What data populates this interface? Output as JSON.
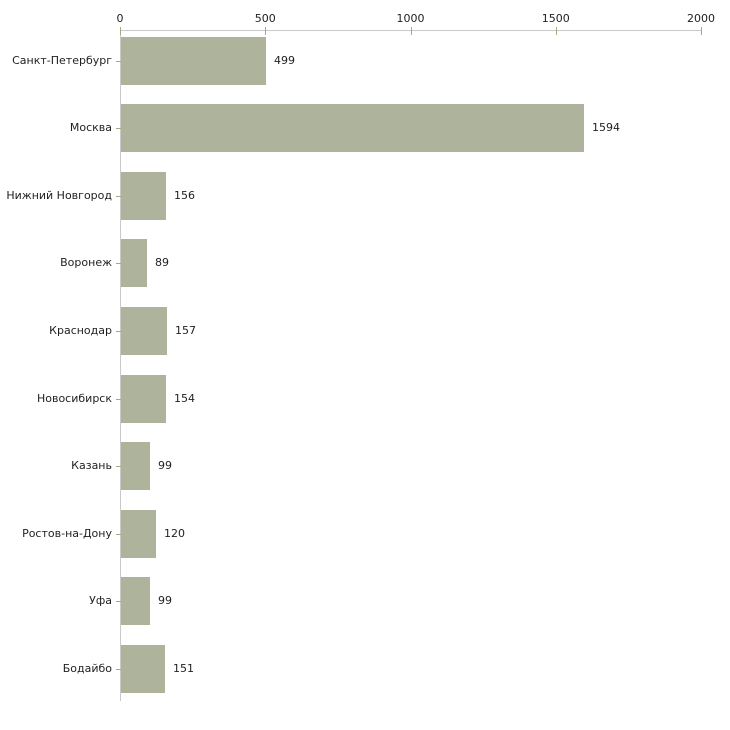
{
  "chart_data": {
    "type": "bar",
    "orientation": "horizontal",
    "title": "",
    "xlabel": "",
    "ylabel": "",
    "categories": [
      "Санкт-Петербург",
      "Москва",
      "Нижний Новгород",
      "Воронеж",
      "Краснодар",
      "Новосибирск",
      "Казань",
      "Ростов-на-Дону",
      "Уфа",
      "Бодайбо"
    ],
    "values": [
      499,
      1594,
      156,
      89,
      157,
      154,
      99,
      120,
      99,
      151
    ],
    "value_labels": [
      "499",
      "1594",
      "156",
      "89",
      "157",
      "154",
      "99",
      "120",
      "99",
      "151"
    ],
    "x_ticks": [
      "0",
      "500",
      "1000",
      "1500",
      "2000"
    ],
    "x_tick_values": [
      0,
      500,
      1000,
      1500,
      2000
    ],
    "xlim": [
      0,
      2000
    ],
    "grid": false,
    "legend": "none",
    "axis_position": "top-left",
    "colors": {
      "bar_fill": "#aeb49c",
      "axis_line": "#c9c9c9",
      "tick_mark": "#a8a888",
      "text": "#1f1f1f",
      "background": "#ffffff"
    }
  }
}
